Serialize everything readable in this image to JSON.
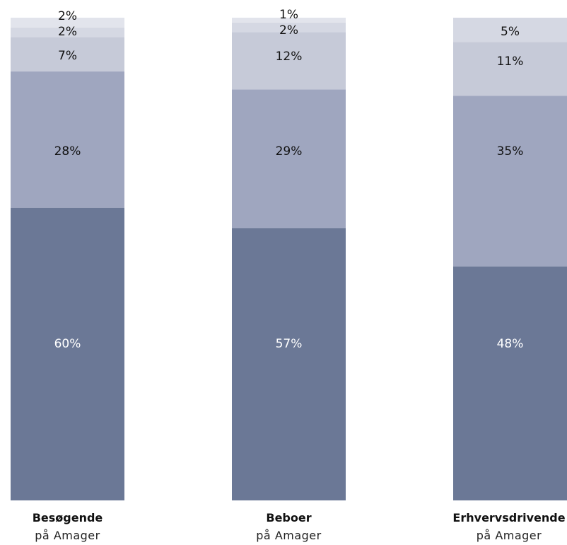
{
  "chart_data": {
    "type": "bar",
    "stacked": true,
    "categories": [
      {
        "title": "Besøgende",
        "subtitle": "på Amager"
      },
      {
        "title": "Beboer",
        "subtitle": "på Amager"
      },
      {
        "title": "Erhvervsdrivende",
        "subtitle": "på Amager"
      }
    ],
    "series": [
      {
        "values": [
          60,
          57,
          48
        ],
        "labels": [
          "60%",
          "57%",
          "48%"
        ],
        "color": "#6b7896",
        "label_color": "#ffffff"
      },
      {
        "values": [
          28,
          29,
          35
        ],
        "labels": [
          "28%",
          "29%",
          "35%"
        ],
        "color": "#9fa6bf",
        "label_color": "#111111"
      },
      {
        "values": [
          7,
          12,
          11
        ],
        "labels": [
          "7%",
          "12%",
          "11%"
        ],
        "color": "#c6cad8",
        "label_color": "#111111"
      },
      {
        "values": [
          2,
          2,
          5
        ],
        "labels": [
          "2%",
          "2%",
          "5%"
        ],
        "color": "#d5d8e3",
        "label_color": "#111111"
      },
      {
        "values": [
          2,
          1,
          0
        ],
        "labels": [
          "2%",
          "1%",
          ""
        ],
        "color": "#e2e4ec",
        "label_color": "#111111"
      }
    ],
    "ylim": [
      0,
      100
    ],
    "grid": false,
    "legend": "none"
  }
}
